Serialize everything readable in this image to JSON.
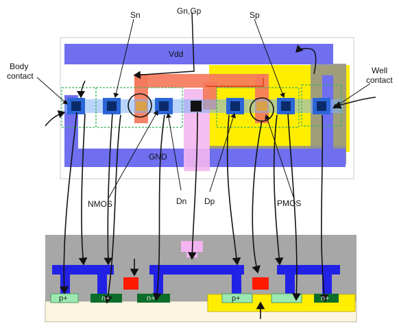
{
  "labels": {
    "sn": "Sn",
    "gn_gp": "Gn,Gp",
    "sp": "Sp",
    "body_contact_1": "Body",
    "body_contact_2": "contact",
    "well_contact_1": "Well",
    "well_contact_2": "contact",
    "vdd": "Vdd",
    "gnd": "GND",
    "nmos": "NMOS",
    "dn": "Dn",
    "dp": "Dp",
    "pmos": "PMOS"
  },
  "cross_section_labels": [
    "p+",
    "n+",
    "n+",
    "p+",
    "n+"
  ],
  "colors": {
    "metal": "#3a3ae8",
    "vdd_rail": "#7070ef",
    "n_well": "#ffee00",
    "poly": "#f07a5a",
    "contact": "#0a2a6a",
    "diffusion_p": "#9ce8b0",
    "diffusion_n": "#0c6e2a",
    "oxide": "#a8a8a8",
    "substrate": "#fbf5e2",
    "pink": "#f4b4f0",
    "gate_red": "#ff1a00"
  }
}
